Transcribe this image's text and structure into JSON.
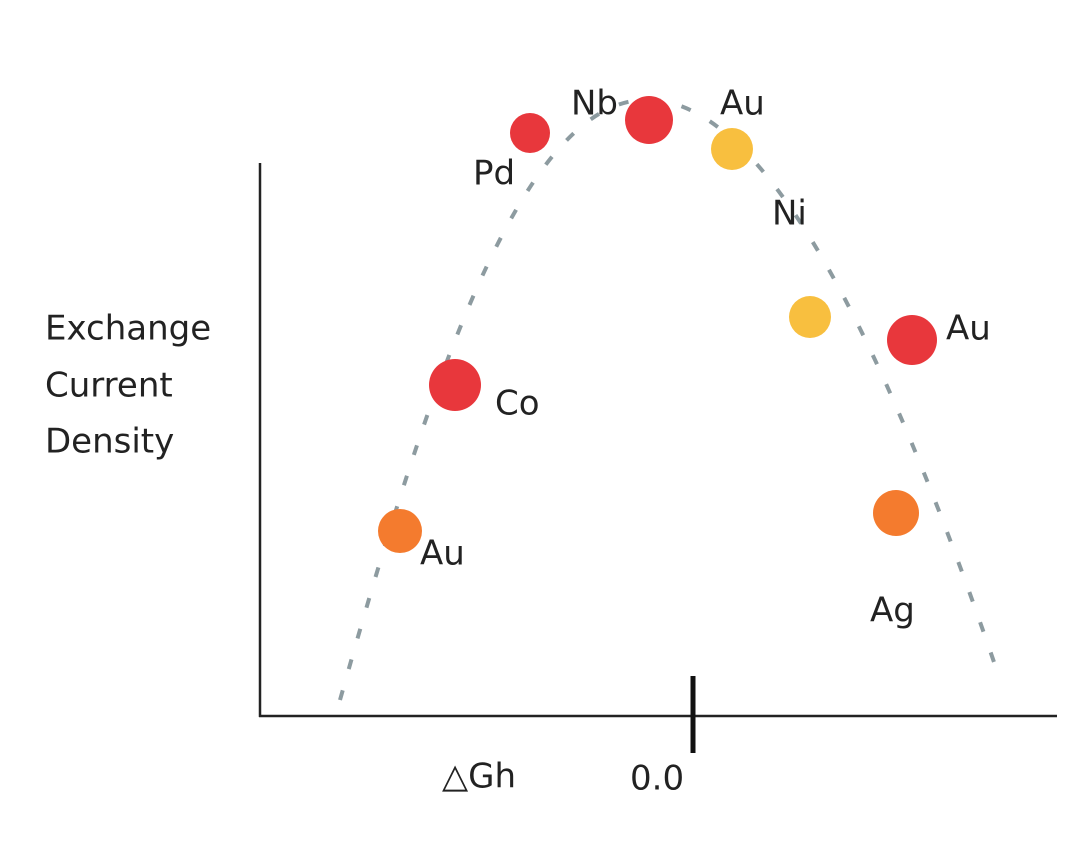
{
  "y_axis_label": [
    "Exchange",
    "Current",
    "Density"
  ],
  "x_axis_label": "△Gh",
  "x_tick_label": "0.0",
  "points": [
    {
      "label": "Pd"
    },
    {
      "label": "Nb"
    },
    {
      "label": "Au"
    },
    {
      "label": "Ni"
    },
    {
      "label": "Au"
    },
    {
      "label": "Co"
    },
    {
      "label": "Au"
    },
    {
      "label": "Ag"
    }
  ]
}
